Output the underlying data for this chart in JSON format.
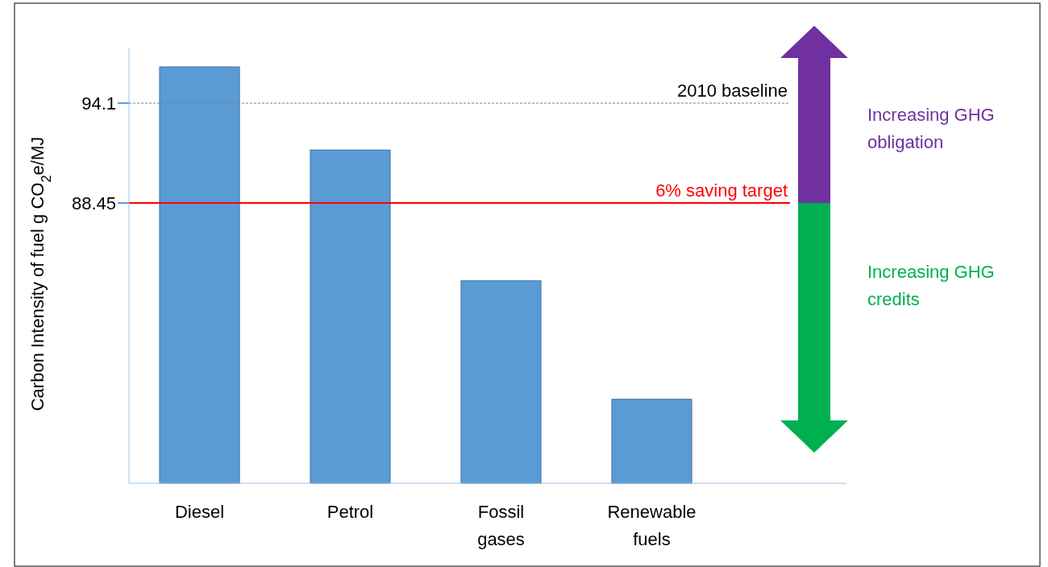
{
  "chart_data": {
    "type": "bar",
    "categories": [
      "Diesel",
      "Petrol",
      "Fossil\ngases",
      "Renewable\nfuels"
    ],
    "values": [
      96.15,
      91.45,
      84.05,
      77.35
    ],
    "color": "#5b9bd5",
    "ylabel": "Carbon Intensity of fuel g CO$_{2}$e/MJ",
    "ylim": [
      72.6,
      97.2
    ],
    "yticks": [
      94.1,
      88.45
    ],
    "grid": false,
    "ref_lines": [
      {
        "axis": "y",
        "value": 94.1,
        "label": "2010 baseline",
        "color": "#7f7f7f",
        "line_style": "dashed"
      },
      {
        "axis": "y",
        "value": 88.45,
        "label": "6% saving target",
        "color": "#ff0000",
        "line_style": "solid"
      }
    ],
    "annotations": [
      "Increasing GHG\nobligation",
      "Increasing GHG\ncredits"
    ]
  }
}
